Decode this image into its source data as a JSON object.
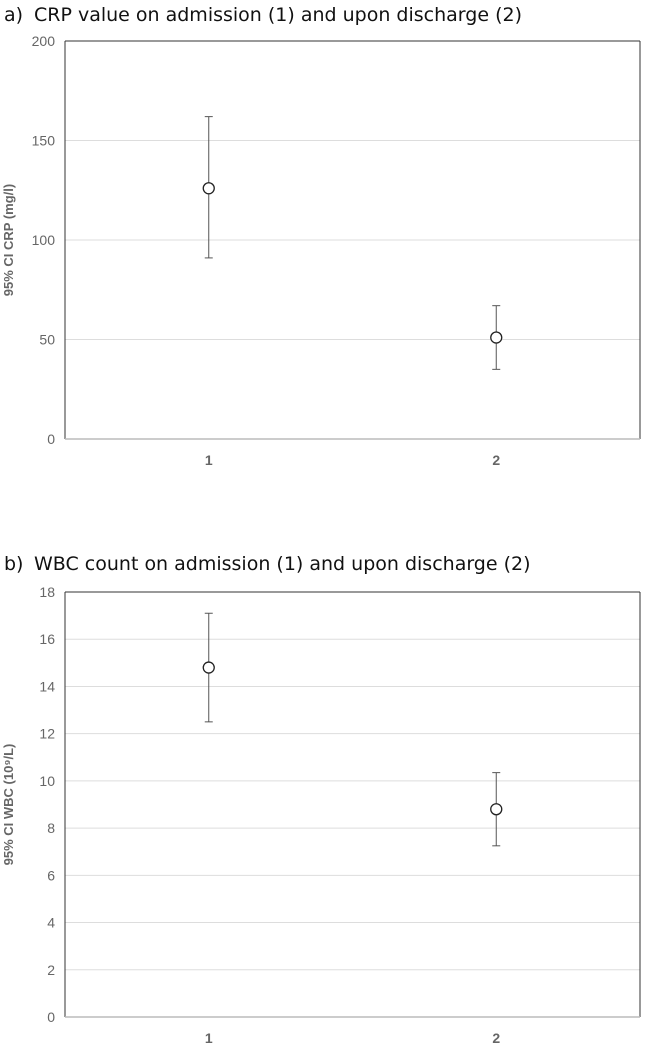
{
  "chart_data": [
    {
      "type": "scatter",
      "panel_letter": "a)",
      "title": "CRP value on admission (1) and upon discharge (2)",
      "ylabel": "95% CI CRP (mg/l)",
      "xlabel": "",
      "categories": [
        "1",
        "2"
      ],
      "ylim": [
        0,
        200
      ],
      "yticks": [
        0,
        50,
        100,
        150,
        200
      ],
      "grid": true,
      "series": [
        {
          "values": [
            126,
            51
          ],
          "ci_low": [
            91,
            35
          ],
          "ci_high": [
            162,
            67
          ]
        }
      ]
    },
    {
      "type": "scatter",
      "panel_letter": "b)",
      "title": "WBC count on admission (1) and upon discharge (2)",
      "ylabel": "95% CI WBC (10⁹/L)",
      "xlabel": "",
      "categories": [
        "1",
        "2"
      ],
      "ylim": [
        0,
        18
      ],
      "yticks": [
        0,
        2,
        4,
        6,
        8,
        10,
        12,
        14,
        16,
        18
      ],
      "grid": true,
      "series": [
        {
          "values": [
            14.8,
            8.8
          ],
          "ci_low": [
            12.5,
            7.25
          ],
          "ci_high": [
            17.1,
            10.35
          ]
        }
      ]
    }
  ]
}
